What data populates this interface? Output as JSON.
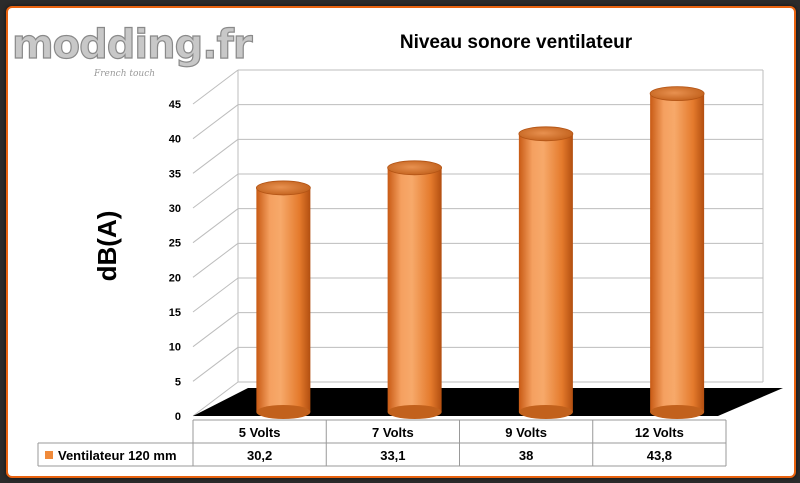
{
  "watermark": {
    "logo_text": "modding.fr",
    "tagline": "French touch"
  },
  "chart_data": {
    "type": "bar",
    "title": "Niveau sonore ventilateur",
    "ylabel": "dB(A)",
    "xlabel": "",
    "ylim": [
      0,
      45
    ],
    "yticks": [
      0,
      5,
      10,
      15,
      20,
      25,
      30,
      35,
      40,
      45
    ],
    "categories": [
      "5 Volts",
      "7 Volts",
      "9 Volts",
      "12 Volts"
    ],
    "series": [
      {
        "name": "Ventilateur 120 mm",
        "values": [
          30.2,
          33.1,
          38,
          43.8
        ],
        "color": "#f08a3a"
      }
    ],
    "table_values": [
      "30,2",
      "33,1",
      "38",
      "43,8"
    ],
    "grid": true,
    "legend": "data-table",
    "floor_color": "#000000",
    "bar_shape": "cylinder"
  }
}
